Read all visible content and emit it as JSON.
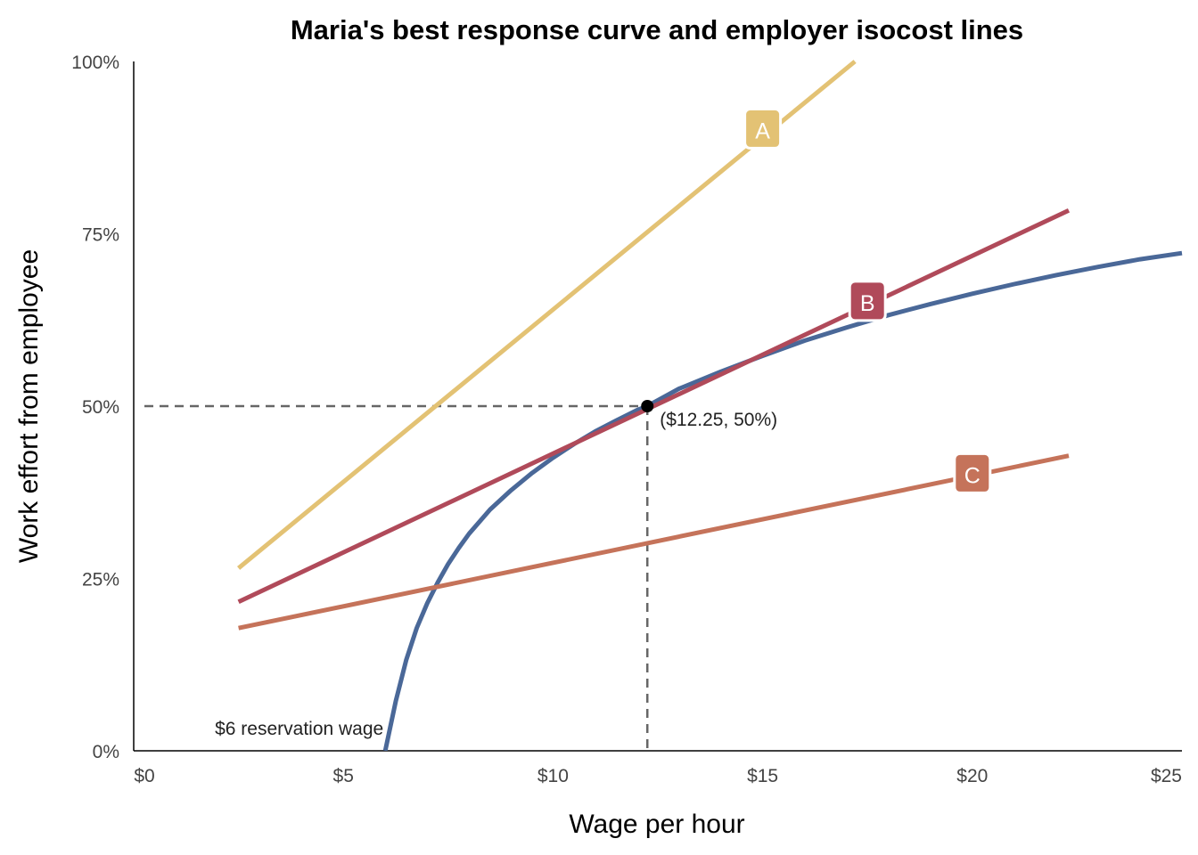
{
  "chart_data": {
    "type": "line",
    "title": "Maria's best response curve and employer isocost lines",
    "xlabel": "Wage per hour",
    "ylabel": "Work effort from employee",
    "xlim": [
      0,
      25
    ],
    "ylim": [
      0,
      1
    ],
    "x_ticks": [
      {
        "value": 0,
        "label": "$0"
      },
      {
        "value": 5,
        "label": "$5"
      },
      {
        "value": 10,
        "label": "$10"
      },
      {
        "value": 15,
        "label": "$15"
      },
      {
        "value": 20,
        "label": "$20"
      },
      {
        "value": 25,
        "label": "$25"
      }
    ],
    "y_ticks": [
      {
        "value": 0,
        "label": "0%"
      },
      {
        "value": 0.25,
        "label": "25%"
      },
      {
        "value": 0.5,
        "label": "50%"
      },
      {
        "value": 0.75,
        "label": "75%"
      },
      {
        "value": 1,
        "label": "100%"
      }
    ],
    "grid": false,
    "series": [
      {
        "key": "best_response",
        "color": "#4a6898",
        "x": [
          6.0,
          6.25,
          6.5,
          6.75,
          7.0,
          7.25,
          7.5,
          7.75,
          8.0,
          8.5,
          9.0,
          9.5,
          10.0,
          10.5,
          11.0,
          11.5,
          12.0,
          12.25,
          13.0,
          14.0,
          15.0,
          16.0,
          17.0,
          18.0,
          19.0,
          20.0,
          21.0,
          22.0,
          23.0,
          24.0,
          25.0
        ],
        "y": [
          0.0,
          0.072,
          0.132,
          0.178,
          0.214,
          0.244,
          0.271,
          0.294,
          0.315,
          0.35,
          0.378,
          0.403,
          0.425,
          0.445,
          0.463,
          0.479,
          0.494,
          0.5,
          0.525,
          0.55,
          0.573,
          0.595,
          0.614,
          0.632,
          0.648,
          0.663,
          0.677,
          0.69,
          0.702,
          0.713,
          0.722
        ]
      },
      {
        "key": "A",
        "label": "A",
        "color": "#e3c274",
        "x": [
          2.5,
          17.2
        ],
        "y": [
          0.265,
          1.0
        ],
        "label_position": [
          15.0,
          0.9
        ]
      },
      {
        "key": "B",
        "label": "B",
        "color": "#b04a5a",
        "x": [
          2.5,
          22.3
        ],
        "y": [
          0.216,
          0.784
        ],
        "label_position": [
          17.5,
          0.65
        ]
      },
      {
        "key": "C",
        "label": "C",
        "color": "#c5735a",
        "x": [
          2.5,
          22.3
        ],
        "y": [
          0.178,
          0.428
        ],
        "label_position": [
          20.0,
          0.4
        ]
      }
    ],
    "optimum_point": {
      "x": 12.25,
      "y": 0.5,
      "label": "($12.25, 50%)"
    },
    "annotations": [
      {
        "text": "$6 reservation wage",
        "x": 6,
        "y": 0
      }
    ]
  }
}
